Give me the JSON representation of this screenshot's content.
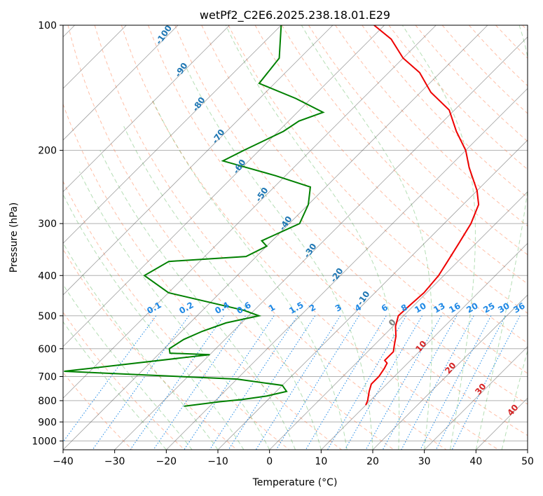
{
  "chart_data": {
    "type": "line",
    "chart_kind": "skew-t log-p diagram",
    "title": "wetPf2_C2E6.2025.238.18.01.E29",
    "xlabel": "Temperature (°C)",
    "ylabel": "Pressure (hPa)",
    "xlim": [
      -40,
      50
    ],
    "ylim": [
      1050,
      100
    ],
    "y_scale": "log",
    "x_ticks": [
      -40,
      -30,
      -20,
      -10,
      0,
      10,
      20,
      30,
      40,
      50
    ],
    "x_tick_labels": [
      "−40",
      "−30",
      "−20",
      "−10",
      "0",
      "10",
      "20",
      "30",
      "40",
      "50"
    ],
    "y_ticks": [
      100,
      200,
      300,
      400,
      500,
      600,
      700,
      800,
      900,
      1000
    ],
    "y_tick_labels": [
      "100",
      "200",
      "300",
      "400",
      "500",
      "600",
      "700",
      "800",
      "900",
      "1000"
    ],
    "grid": true,
    "colors": {
      "temperature": "#ee0000",
      "dewpoint": "#008000",
      "dry_adiabats": "#ff7f50",
      "moist_adiabats": "#2ca02c",
      "mixing_ratio": "#1e88e5",
      "isotherms": "#555555"
    },
    "series": [
      {
        "points": [
          [
            10,
            820
          ],
          [
            9.5,
            800
          ],
          [
            8,
            760
          ],
          [
            7,
            730
          ],
          [
            7,
            700
          ],
          [
            6.5,
            670
          ],
          [
            6,
            650
          ],
          [
            5,
            640
          ],
          [
            5,
            610
          ],
          [
            4,
            590
          ],
          [
            2.5,
            560
          ],
          [
            0.5,
            530
          ],
          [
            -1,
            500
          ],
          [
            -0.8,
            470
          ],
          [
            -0.5,
            440
          ],
          [
            -1,
            400
          ],
          [
            -2,
            370
          ],
          [
            -3.3,
            335
          ],
          [
            -4.8,
            300
          ],
          [
            -7,
            270
          ],
          [
            -10,
            250
          ],
          [
            -16,
            220
          ],
          [
            -20,
            200
          ],
          [
            -25.5,
            180
          ],
          [
            -31,
            160
          ],
          [
            -38,
            145
          ],
          [
            -44,
            130
          ],
          [
            -50,
            120
          ],
          [
            -56,
            108
          ],
          [
            -62,
            100
          ]
        ],
        "color": "#ee0000"
      },
      {
        "points": [
          [
            -25,
            825
          ],
          [
            -19,
            805
          ],
          [
            -15,
            795
          ],
          [
            -11,
            780
          ],
          [
            -8,
            760
          ],
          [
            -10,
            735
          ],
          [
            -20,
            710
          ],
          [
            -55,
            680
          ],
          [
            -30,
            620
          ],
          [
            -38,
            615
          ],
          [
            -39,
            600
          ],
          [
            -38,
            570
          ],
          [
            -36,
            545
          ],
          [
            -33,
            520
          ],
          [
            -28,
            500
          ],
          [
            -32,
            485
          ],
          [
            -50,
            440
          ],
          [
            -58,
            400
          ],
          [
            -56,
            370
          ],
          [
            -42,
            360
          ],
          [
            -40,
            340
          ],
          [
            -42,
            330
          ],
          [
            -38,
            300
          ],
          [
            -40,
            270
          ],
          [
            -43,
            245
          ],
          [
            -52,
            230
          ],
          [
            -65,
            212
          ],
          [
            -63,
            200
          ],
          [
            -59,
            180
          ],
          [
            -58,
            170
          ],
          [
            -55,
            162
          ],
          [
            -63,
            150
          ],
          [
            -73,
            138
          ],
          [
            -74,
            120
          ],
          [
            -80,
            100
          ]
        ],
        "color": "#008000"
      }
    ],
    "dry_adiabat_labels": [
      "-100",
      "-90",
      "-80",
      "-70",
      "-60",
      "-50",
      "-40",
      "-30",
      "-20",
      "-10"
    ],
    "mixing_ratio_labels": [
      "0.1",
      "0.2",
      "0.4",
      "0.6",
      "1",
      "1.5",
      "2",
      "3",
      "4",
      "6",
      "8",
      "10",
      "13",
      "16",
      "20",
      "25",
      "30",
      "36"
    ],
    "mixing_ratio_values": [
      0.1,
      0.2,
      0.4,
      0.6,
      1,
      1.5,
      2,
      3,
      4,
      6,
      8,
      10,
      13,
      16,
      20,
      25,
      30,
      36
    ],
    "moist_adiabat_labels": [
      "0",
      "10",
      "20",
      "30",
      "40"
    ]
  }
}
